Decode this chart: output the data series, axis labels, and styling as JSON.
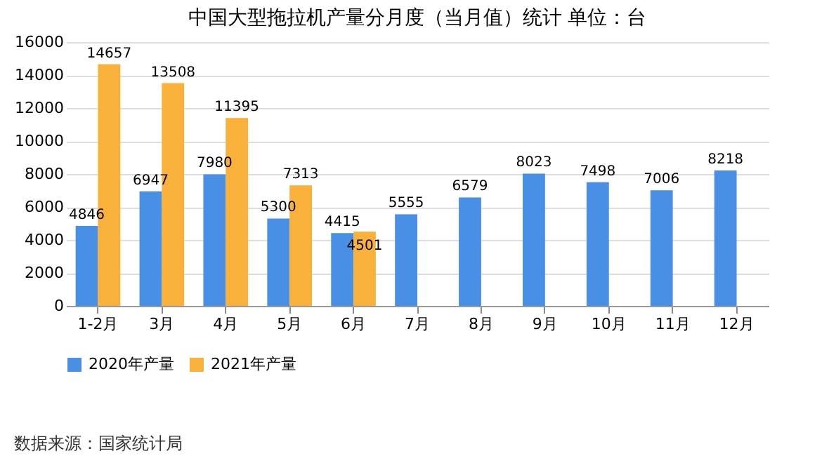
{
  "chart_data": {
    "type": "bar",
    "title": "中国大型拖拉机产量分月度（当月值）统计 单位：台",
    "categories": [
      "1-2月",
      "3月",
      "4月",
      "5月",
      "6月",
      "7月",
      "8月",
      "9月",
      "10月",
      "11月",
      "12月"
    ],
    "series": [
      {
        "name": "2020年产量",
        "color": "#4a8fe6",
        "values": [
          4846,
          6947,
          7980,
          5300,
          4415,
          5555,
          6579,
          8023,
          7498,
          7006,
          8218
        ]
      },
      {
        "name": "2021年产量",
        "color": "#f9b13b",
        "values": [
          14657,
          13508,
          11395,
          7313,
          4501,
          null,
          null,
          null,
          null,
          null,
          null
        ]
      }
    ],
    "ylim": [
      0,
      16000
    ],
    "yticks": [
      0,
      2000,
      4000,
      6000,
      8000,
      10000,
      12000,
      14000,
      16000
    ],
    "grid": "y",
    "legend": "bottom",
    "data_labels": true,
    "annotations": [
      "数据来源：国家统计局"
    ]
  }
}
